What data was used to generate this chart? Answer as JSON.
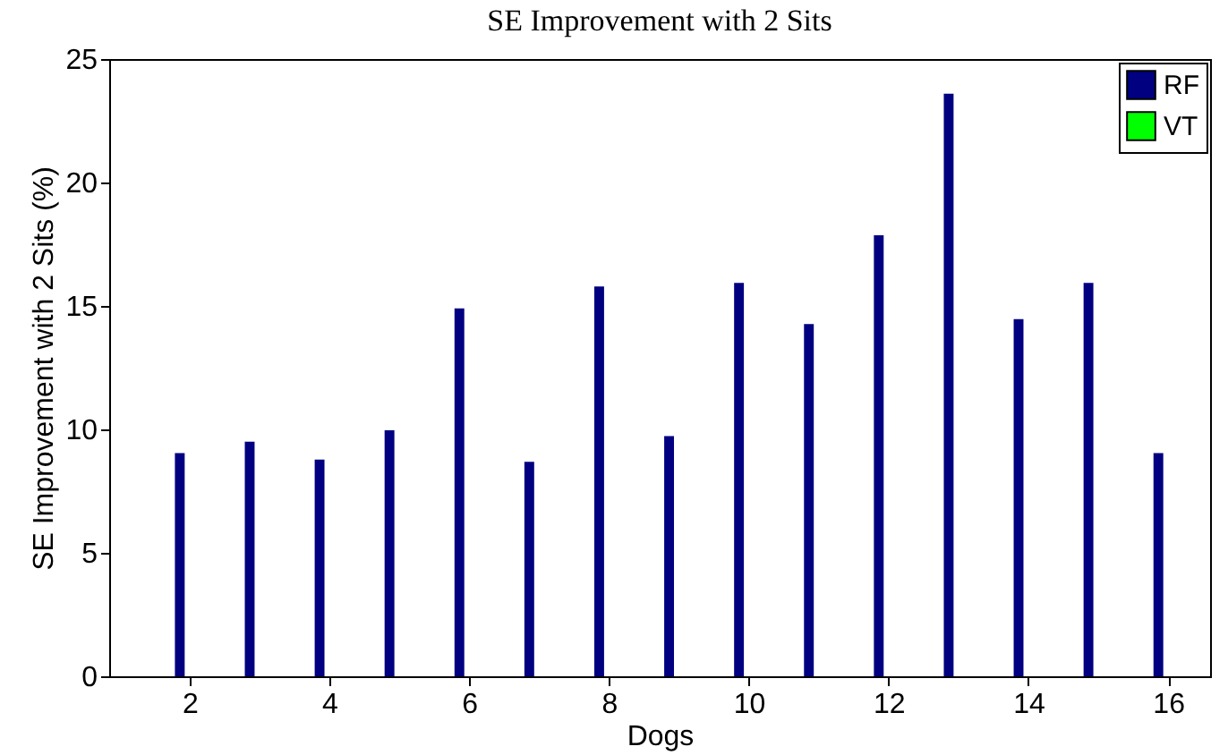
{
  "chart_data": {
    "type": "bar",
    "title": "SE Improvement with 2 Sits",
    "xlabel": "Dogs",
    "ylabel": "SE Improvement with 2 Sits (%)",
    "x": [
      2,
      3,
      4,
      5,
      6,
      7,
      8,
      9,
      10,
      11,
      12,
      13,
      14,
      15,
      16
    ],
    "series": [
      {
        "name": "RF",
        "color": "#000080",
        "values": [
          9.04,
          9.5,
          8.78,
          9.96,
          14.9,
          8.69,
          15.79,
          9.73,
          15.93,
          14.27,
          17.86,
          23.6,
          14.47,
          15.93,
          9.04
        ]
      },
      {
        "name": "VT",
        "color": "#00ff00",
        "values": [
          0,
          0,
          0,
          0,
          0,
          0,
          0,
          0,
          0,
          0,
          0,
          0,
          0,
          0,
          0
        ]
      }
    ],
    "xlim": [
      0.85,
      16.6
    ],
    "xticks": [
      2,
      4,
      6,
      8,
      10,
      12,
      14,
      16
    ],
    "ylim": [
      0,
      25
    ],
    "yticks": [
      0,
      5,
      10,
      15,
      20,
      25
    ],
    "grid": false,
    "legend": "top right"
  }
}
